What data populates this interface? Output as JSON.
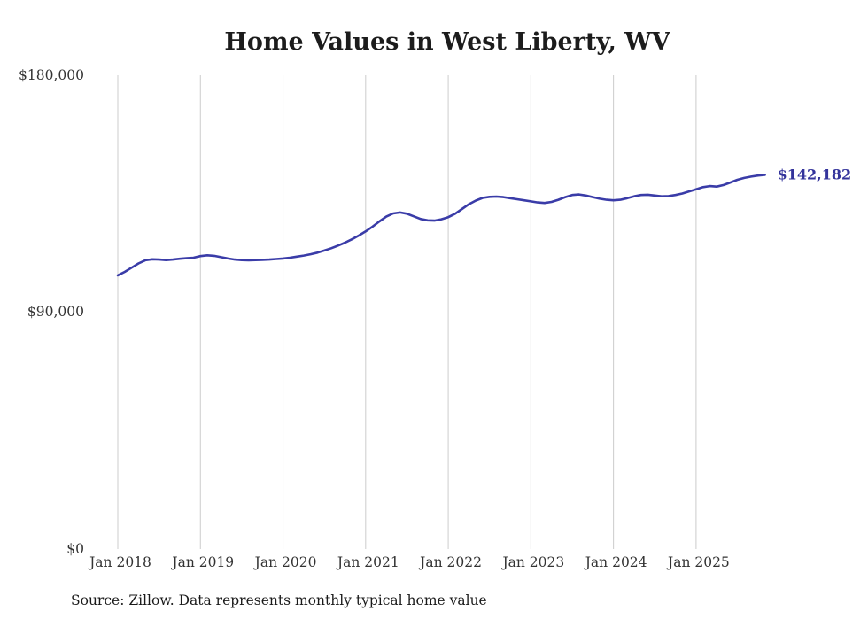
{
  "title": "Home Values in West Liberty, WV",
  "source_note": "Source: Zillow. Data represents monthly typical home value",
  "end_label": "$142,182",
  "chart_data": {
    "type": "line",
    "title": "Home Values in West Liberty, WV",
    "xlabel": "",
    "ylabel": "",
    "ylim": [
      0,
      180000
    ],
    "grid": "vertical-only",
    "legend": "none",
    "line_color": "#3a3ca8",
    "grid_color": "#cccccc",
    "end_value": 142182,
    "end_value_label": "$142,182",
    "y_ticks": [
      0,
      90000,
      180000
    ],
    "y_tick_labels": [
      "$0",
      "$90,000",
      "$180,000"
    ],
    "x_tick_labels": [
      "Jan 2018",
      "Jan 2019",
      "Jan 2020",
      "Jan 2021",
      "Jan 2022",
      "Jan 2023",
      "Jan 2024",
      "Jan 2025"
    ],
    "x": [
      "2018-01",
      "2018-02",
      "2018-03",
      "2018-04",
      "2018-05",
      "2018-06",
      "2018-07",
      "2018-08",
      "2018-09",
      "2018-10",
      "2018-11",
      "2018-12",
      "2019-01",
      "2019-02",
      "2019-03",
      "2019-04",
      "2019-05",
      "2019-06",
      "2019-07",
      "2019-08",
      "2019-09",
      "2019-10",
      "2019-11",
      "2019-12",
      "2020-01",
      "2020-02",
      "2020-03",
      "2020-04",
      "2020-05",
      "2020-06",
      "2020-07",
      "2020-08",
      "2020-09",
      "2020-10",
      "2020-11",
      "2020-12",
      "2021-01",
      "2021-02",
      "2021-03",
      "2021-04",
      "2021-05",
      "2021-06",
      "2021-07",
      "2021-08",
      "2021-09",
      "2021-10",
      "2021-11",
      "2021-12",
      "2022-01",
      "2022-02",
      "2022-03",
      "2022-04",
      "2022-05",
      "2022-06",
      "2022-07",
      "2022-08",
      "2022-09",
      "2022-10",
      "2022-11",
      "2022-12",
      "2023-01",
      "2023-02",
      "2023-03",
      "2023-04",
      "2023-05",
      "2023-06",
      "2023-07",
      "2023-08",
      "2023-09",
      "2023-10",
      "2023-11",
      "2023-12",
      "2024-01",
      "2024-02",
      "2024-03",
      "2024-04",
      "2024-05",
      "2024-06",
      "2024-07",
      "2024-08",
      "2024-09",
      "2024-10",
      "2024-11",
      "2024-12",
      "2025-01",
      "2025-02",
      "2025-03",
      "2025-04",
      "2025-05",
      "2025-06",
      "2025-07",
      "2025-08",
      "2025-09",
      "2025-10",
      "2025-11"
    ],
    "values": [
      104000,
      105300,
      106900,
      108500,
      109700,
      110100,
      110000,
      109800,
      110000,
      110300,
      110500,
      110700,
      111300,
      111600,
      111400,
      110900,
      110400,
      110000,
      109800,
      109700,
      109800,
      109900,
      110000,
      110200,
      110400,
      110700,
      111100,
      111500,
      112000,
      112600,
      113400,
      114300,
      115300,
      116400,
      117700,
      119100,
      120700,
      122500,
      124500,
      126300,
      127500,
      127900,
      127400,
      126400,
      125400,
      124900,
      124800,
      125300,
      126100,
      127400,
      129200,
      131000,
      132400,
      133400,
      133800,
      133900,
      133700,
      133300,
      132900,
      132500,
      132100,
      131700,
      131500,
      131900,
      132700,
      133700,
      134500,
      134700,
      134300,
      133700,
      133100,
      132700,
      132500,
      132700,
      133300,
      134000,
      134500,
      134600,
      134300,
      134000,
      134100,
      134500,
      135100,
      135900,
      136700,
      137500,
      137900,
      137700,
      138300,
      139300,
      140300,
      141000,
      141500,
      141900,
      142182
    ]
  }
}
